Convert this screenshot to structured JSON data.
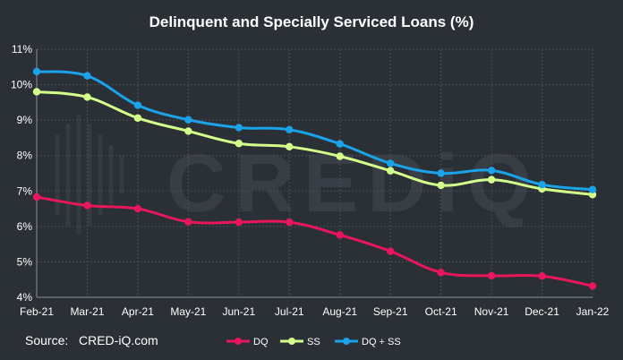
{
  "chart_data": {
    "type": "line",
    "title": "Delinquent and Specially Serviced Loans (%)",
    "categories": [
      "Feb-21",
      "Mar-21",
      "Apr-21",
      "May-21",
      "Jun-21",
      "Jul-21",
      "Aug-21",
      "Sep-21",
      "Oct-21",
      "Nov-21",
      "Dec-21",
      "Jan-22"
    ],
    "yticks": [
      "11%",
      "10%",
      "9%",
      "8%",
      "7%",
      "6%",
      "5%",
      "4%"
    ],
    "ylim": [
      4,
      11
    ],
    "grid": true,
    "legend_position": "bottom",
    "series": [
      {
        "name": "DQ",
        "color": "#e8175d",
        "values": [
          6.83,
          6.59,
          6.5,
          6.13,
          6.12,
          6.12,
          5.76,
          5.3,
          4.7,
          4.61,
          4.6,
          4.32
        ]
      },
      {
        "name": "SS",
        "color": "#d4ff8a",
        "values": [
          9.8,
          9.65,
          9.06,
          8.69,
          8.34,
          8.25,
          7.98,
          7.57,
          7.16,
          7.32,
          7.06,
          6.9
        ]
      },
      {
        "name": "DQ + SS",
        "color": "#1aa3e8",
        "values": [
          10.37,
          10.25,
          9.42,
          9.01,
          8.79,
          8.73,
          8.33,
          7.78,
          7.5,
          7.58,
          7.18,
          7.04
        ]
      }
    ]
  },
  "source_label": "Source:",
  "source_value": "CRED-iQ.com",
  "watermark": "CREDiQ"
}
